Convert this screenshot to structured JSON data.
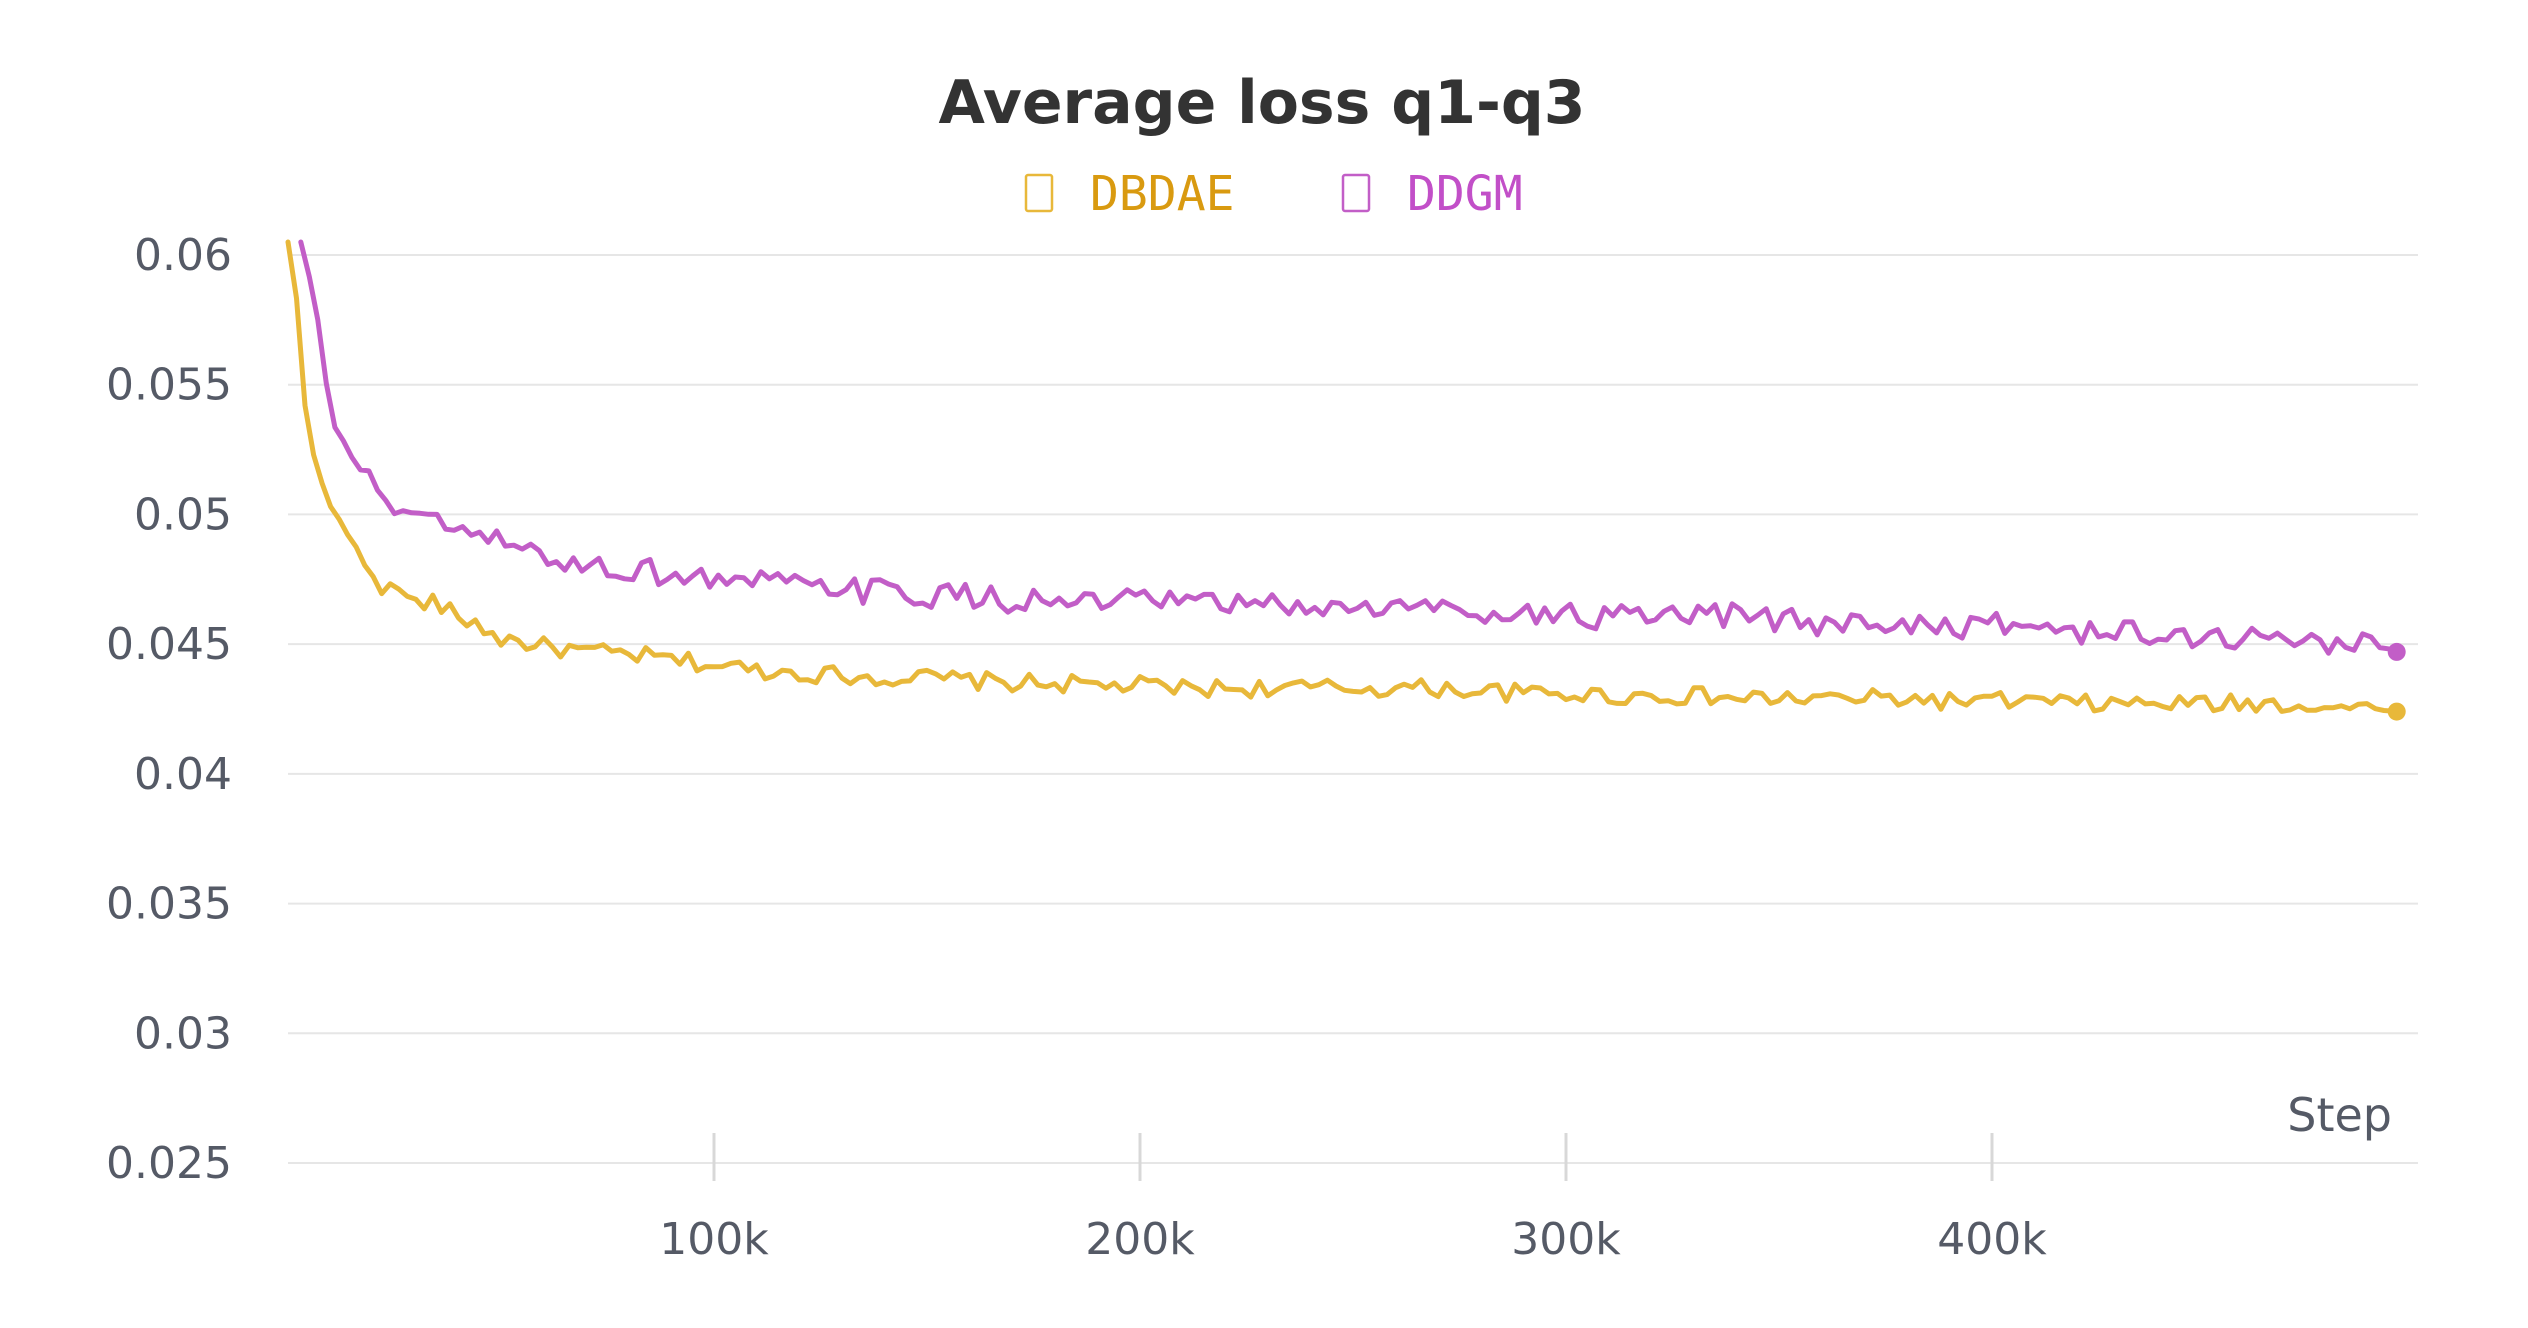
{
  "chart_data": {
    "type": "line",
    "title": "Average loss q1-q3",
    "xlabel": "Step",
    "ylabel": "",
    "xlim": [
      0,
      500000
    ],
    "ylim": [
      0.025,
      0.06
    ],
    "x_ticks": [
      100000,
      200000,
      300000,
      400000
    ],
    "x_tick_labels": [
      "100k",
      "200k",
      "300k",
      "400k"
    ],
    "y_ticks": [
      0.025,
      0.03,
      0.035,
      0.04,
      0.045,
      0.05,
      0.055,
      0.06
    ],
    "y_tick_labels": [
      "0.025",
      "0.03",
      "0.035",
      "0.04",
      "0.045",
      "0.05",
      "0.055",
      "0.06"
    ],
    "grid": "horizontal",
    "legend_position": "top-center",
    "series": [
      {
        "name": "DBDAE",
        "color": "#e8b83a",
        "legend_color": "#d99a10",
        "points": [
          [
            0,
            0.0605
          ],
          [
            1500,
            0.0595
          ],
          [
            3000,
            0.056
          ],
          [
            4500,
            0.0533
          ],
          [
            6000,
            0.0523
          ],
          [
            8000,
            0.0512
          ],
          [
            10000,
            0.0503
          ],
          [
            12500,
            0.0497
          ],
          [
            15000,
            0.0489
          ],
          [
            17500,
            0.0481
          ],
          [
            20000,
            0.0478
          ],
          [
            23000,
            0.047
          ],
          [
            26000,
            0.0472
          ],
          [
            29000,
            0.0465
          ],
          [
            33000,
            0.0467
          ],
          [
            37000,
            0.0463
          ],
          [
            41000,
            0.046
          ],
          [
            45000,
            0.0457
          ],
          [
            50000,
            0.0452
          ],
          [
            55000,
            0.0451
          ],
          [
            60000,
            0.0449
          ],
          [
            70000,
            0.0447
          ],
          [
            80000,
            0.0446
          ],
          [
            90000,
            0.0444
          ],
          [
            100000,
            0.0442
          ],
          [
            110000,
            0.044
          ],
          [
            120000,
            0.0439
          ],
          [
            130000,
            0.0438
          ],
          [
            140000,
            0.0437
          ],
          [
            150000,
            0.0437
          ],
          [
            160000,
            0.0436
          ],
          [
            170000,
            0.0435
          ],
          [
            180000,
            0.0435
          ],
          [
            190000,
            0.0434
          ],
          [
            200000,
            0.0434
          ],
          [
            210000,
            0.0433
          ],
          [
            220000,
            0.0433
          ],
          [
            230000,
            0.0433
          ],
          [
            240000,
            0.0433
          ],
          [
            250000,
            0.0433
          ],
          [
            260000,
            0.0433
          ],
          [
            270000,
            0.0433
          ],
          [
            280000,
            0.0432
          ],
          [
            290000,
            0.0431
          ],
          [
            300000,
            0.0431
          ],
          [
            310000,
            0.043
          ],
          [
            320000,
            0.043
          ],
          [
            330000,
            0.043
          ],
          [
            340000,
            0.0429
          ],
          [
            350000,
            0.0429
          ],
          [
            360000,
            0.0429
          ],
          [
            370000,
            0.0429
          ],
          [
            380000,
            0.0429
          ],
          [
            390000,
            0.0428
          ],
          [
            400000,
            0.0428
          ],
          [
            410000,
            0.0428
          ],
          [
            420000,
            0.0427
          ],
          [
            430000,
            0.0427
          ],
          [
            440000,
            0.0427
          ],
          [
            450000,
            0.0427
          ],
          [
            460000,
            0.0427
          ],
          [
            470000,
            0.0427
          ],
          [
            480000,
            0.0426
          ],
          [
            490000,
            0.0425
          ],
          [
            495000,
            0.0424
          ]
        ],
        "end_value": 0.0424
      },
      {
        "name": "DDGM",
        "color": "#c25ec7",
        "legend_color": "#c24fc8",
        "points": [
          [
            3000,
            0.0605
          ],
          [
            4500,
            0.0595
          ],
          [
            6000,
            0.0585
          ],
          [
            8000,
            0.0565
          ],
          [
            10000,
            0.0536
          ],
          [
            12500,
            0.053
          ],
          [
            15000,
            0.0522
          ],
          [
            17500,
            0.0516
          ],
          [
            20000,
            0.0511
          ],
          [
            23000,
            0.0507
          ],
          [
            26000,
            0.0502
          ],
          [
            29000,
            0.05
          ],
          [
            33000,
            0.0497
          ],
          [
            37000,
            0.0495
          ],
          [
            41000,
            0.0493
          ],
          [
            45000,
            0.0491
          ],
          [
            50000,
            0.0489
          ],
          [
            55000,
            0.0486
          ],
          [
            60000,
            0.0484
          ],
          [
            70000,
            0.048
          ],
          [
            80000,
            0.0479
          ],
          [
            90000,
            0.0477
          ],
          [
            100000,
            0.0475
          ],
          [
            110000,
            0.0474
          ],
          [
            120000,
            0.0472
          ],
          [
            130000,
            0.0471
          ],
          [
            140000,
            0.047
          ],
          [
            150000,
            0.0469
          ],
          [
            160000,
            0.0468
          ],
          [
            170000,
            0.0467
          ],
          [
            180000,
            0.0466
          ],
          [
            190000,
            0.0466
          ],
          [
            200000,
            0.0466
          ],
          [
            210000,
            0.0466
          ],
          [
            220000,
            0.0465
          ],
          [
            230000,
            0.0465
          ],
          [
            240000,
            0.0464
          ],
          [
            250000,
            0.0464
          ],
          [
            260000,
            0.0464
          ],
          [
            270000,
            0.0464
          ],
          [
            280000,
            0.0463
          ],
          [
            290000,
            0.0462
          ],
          [
            300000,
            0.0461
          ],
          [
            310000,
            0.046
          ],
          [
            320000,
            0.046
          ],
          [
            330000,
            0.046
          ],
          [
            340000,
            0.0461
          ],
          [
            350000,
            0.0459
          ],
          [
            360000,
            0.0458
          ],
          [
            370000,
            0.0458
          ],
          [
            380000,
            0.0458
          ],
          [
            390000,
            0.0457
          ],
          [
            400000,
            0.0457
          ],
          [
            410000,
            0.0457
          ],
          [
            420000,
            0.0455
          ],
          [
            430000,
            0.0454
          ],
          [
            440000,
            0.0453
          ],
          [
            450000,
            0.0453
          ],
          [
            460000,
            0.0452
          ],
          [
            470000,
            0.0452
          ],
          [
            480000,
            0.0451
          ],
          [
            490000,
            0.045
          ],
          [
            495000,
            0.0447
          ]
        ],
        "end_value": 0.0447
      }
    ]
  }
}
